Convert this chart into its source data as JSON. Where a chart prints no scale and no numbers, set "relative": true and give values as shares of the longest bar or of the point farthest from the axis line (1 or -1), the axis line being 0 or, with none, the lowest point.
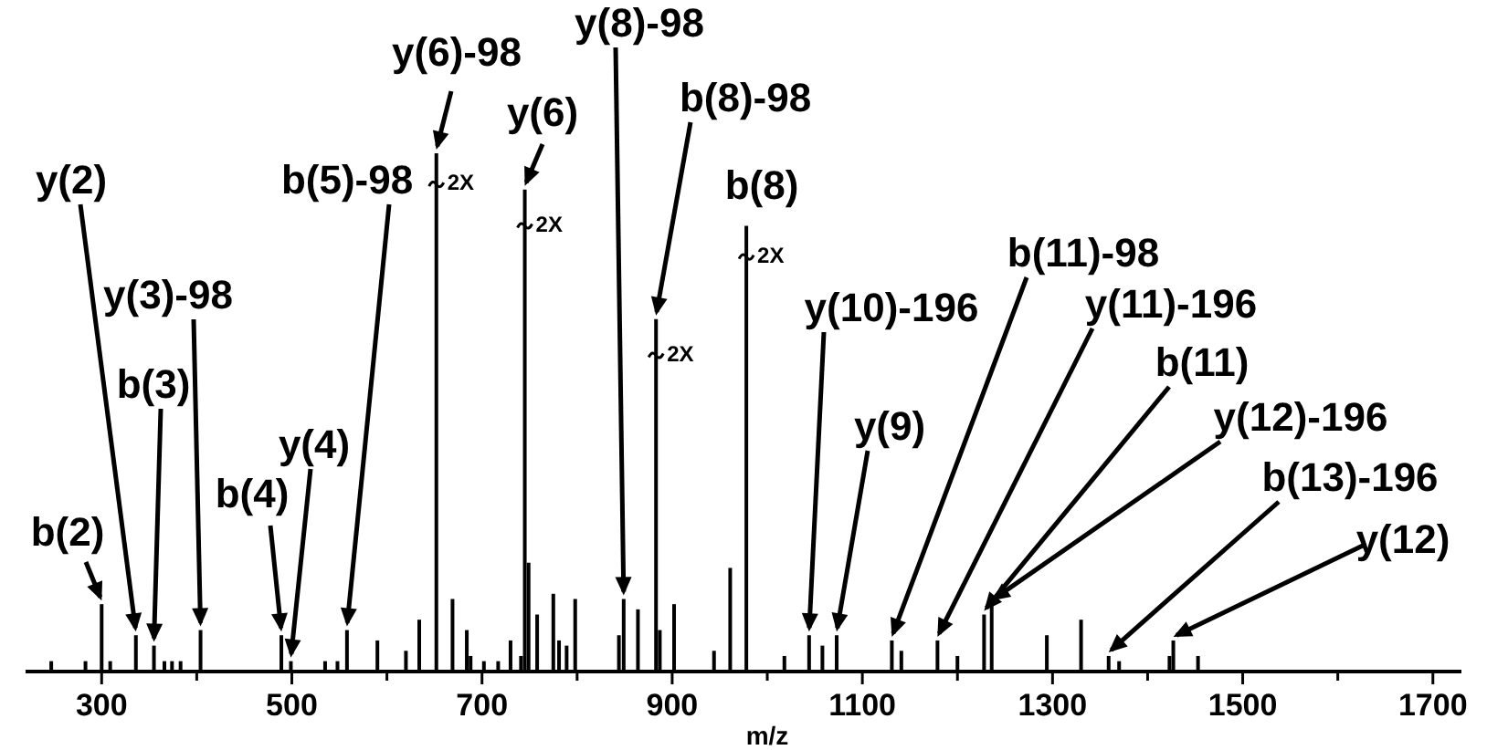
{
  "chart_data": {
    "type": "bar",
    "relative": true,
    "xlabel": "m/z",
    "x": [
      247,
      283,
      300,
      309,
      336,
      355,
      366,
      374,
      383,
      404,
      489,
      499,
      535,
      548,
      558,
      590,
      620,
      634,
      652,
      669,
      684,
      688,
      702,
      717,
      730,
      741,
      745,
      749,
      758,
      775,
      781,
      789,
      798,
      844,
      849,
      864,
      883,
      887,
      902,
      944,
      961,
      978,
      1018,
      1044,
      1058,
      1073,
      1131,
      1141,
      1179,
      1200,
      1228,
      1236,
      1294,
      1330,
      1359,
      1370,
      1423,
      1427,
      1453
    ],
    "values": [
      0.02,
      0.02,
      0.13,
      0.02,
      0.07,
      0.05,
      0.02,
      0.02,
      0.02,
      0.08,
      0.07,
      0.02,
      0.02,
      0.02,
      0.08,
      0.06,
      0.04,
      0.1,
      1,
      0.14,
      0.08,
      0.03,
      0.02,
      0.02,
      0.06,
      0.03,
      0.93,
      0.21,
      0.11,
      0.15,
      0.06,
      0.05,
      0.14,
      0.07,
      0.14,
      0.12,
      0.68,
      0.08,
      0.13,
      0.04,
      0.2,
      0.86,
      0.03,
      0.07,
      0.05,
      0.07,
      0.06,
      0.04,
      0.06,
      0.03,
      0.11,
      0.13,
      0.07,
      0.1,
      0.03,
      0.02,
      0.03,
      0.06,
      0.03
    ],
    "color": "#000000",
    "xlim": [
      220,
      1730
    ],
    "xticks": [
      300,
      {
        "value": 400,
        "label": null
      },
      500,
      {
        "value": 600,
        "label": null
      },
      700,
      {
        "value": 800,
        "label": null
      },
      900,
      {
        "value": 1000,
        "label": null
      },
      1100,
      {
        "value": 1200,
        "label": null
      },
      1300,
      {
        "value": 1400,
        "label": null
      },
      1500,
      {
        "value": 1600,
        "label": null
      },
      1700
    ],
    "annotations": [
      {
        "text": "b(2)",
        "x": 300,
        "y": 0.13
      },
      {
        "text": "y(2)",
        "x": 336,
        "y": 0.07
      },
      {
        "text": "b(3)",
        "x": 355,
        "y": 0.05
      },
      {
        "text": "y(3)-98",
        "x": 404,
        "y": 0.08
      },
      {
        "text": "b(4)",
        "x": 489,
        "y": 0.07
      },
      {
        "text": "y(4)",
        "x": 499,
        "y": 0.02
      },
      {
        "text": "b(5)-98",
        "x": 558,
        "y": 0.08
      },
      {
        "text": "y(6)-98",
        "x": 652,
        "y": 1
      },
      {
        "text": "y(6)",
        "x": 745,
        "y": 0.93
      },
      {
        "text": "y(8)-98",
        "x": 849,
        "y": 0.14
      },
      {
        "text": "b(8)-98",
        "x": 883,
        "y": 0.68
      },
      {
        "text": "b(8)",
        "x": 978,
        "y": 0.86
      },
      {
        "text": "y(10)-196",
        "x": 1044,
        "y": 0.07
      },
      {
        "text": "y(9)",
        "x": 1073,
        "y": 0.07
      },
      {
        "text": "b(11)-98",
        "x": 1131,
        "y": 0.06
      },
      {
        "text": "y(11)-196",
        "x": 1179,
        "y": 0.06
      },
      {
        "text": "b(11)",
        "x": 1228,
        "y": 0.11
      },
      {
        "text": "y(12)-196",
        "x": 1236,
        "y": 0.13
      },
      {
        "text": "b(13)-196",
        "x": 1359,
        "y": 0.03
      },
      {
        "text": "y(12)",
        "x": 1427,
        "y": 0.06
      },
      {
        "text": "2X",
        "x": 652,
        "y": 0.94
      },
      {
        "text": "2X",
        "x": 745,
        "y": 0.86
      },
      {
        "text": "2X",
        "x": 883,
        "y": 0.61
      },
      {
        "text": "2X",
        "x": 978,
        "y": 0.8
      }
    ]
  }
}
